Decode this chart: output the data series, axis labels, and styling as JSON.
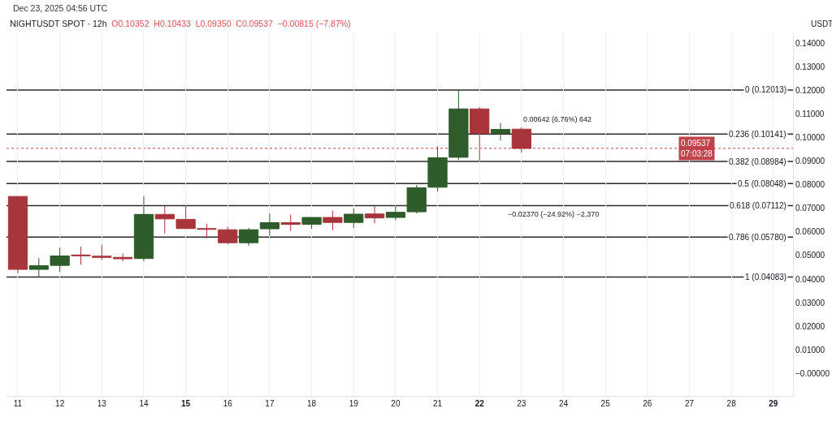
{
  "chart_data": {
    "type": "candlestick",
    "title": "NIGHTUSDT SPOT · 12h",
    "subtitle": "O0.10352  H0.10433  L0.09350  C0.09537  −0.00815 (−7.87%)",
    "ylabel": "USDT",
    "x": [
      "2025-12-11T00:00",
      "2025-12-11T12:00",
      "2025-12-12T00:00",
      "2025-12-12T12:00",
      "2025-12-13T00:00",
      "2025-12-13T12:00",
      "2025-12-14T00:00",
      "2025-12-14T12:00",
      "2025-12-15T00:00",
      "2025-12-15T12:00",
      "2025-12-16T00:00",
      "2025-12-16T12:00",
      "2025-12-17T00:00",
      "2025-12-17T12:00",
      "2025-12-18T00:00",
      "2025-12-18T12:00",
      "2025-12-19T00:00",
      "2025-12-19T12:00",
      "2025-12-20T00:00",
      "2025-12-20T12:00",
      "2025-12-21T00:00",
      "2025-12-21T12:00",
      "2025-12-22T00:00",
      "2025-12-22T12:00",
      "2025-12-23T00:00"
    ],
    "ohlc": [
      [
        0.075,
        0.0751,
        0.0424,
        0.0441
      ],
      [
        0.0441,
        0.0489,
        0.0408,
        0.0457
      ],
      [
        0.0458,
        0.0533,
        0.043,
        0.0498
      ],
      [
        0.0502,
        0.0538,
        0.0461,
        0.0499
      ],
      [
        0.0497,
        0.0546,
        0.0481,
        0.0492
      ],
      [
        0.0492,
        0.0508,
        0.0475,
        0.0486
      ],
      [
        0.0487,
        0.075,
        0.0475,
        0.0674
      ],
      [
        0.0674,
        0.071,
        0.0593,
        0.0655
      ],
      [
        0.0653,
        0.0712,
        0.0612,
        0.0614
      ],
      [
        0.0614,
        0.0635,
        0.0573,
        0.0611
      ],
      [
        0.0609,
        0.0622,
        0.0547,
        0.0554
      ],
      [
        0.0554,
        0.0617,
        0.0541,
        0.0609
      ],
      [
        0.0613,
        0.0678,
        0.0584,
        0.0639
      ],
      [
        0.0639,
        0.0674,
        0.0604,
        0.0632
      ],
      [
        0.0632,
        0.0662,
        0.0613,
        0.0661
      ],
      [
        0.0661,
        0.069,
        0.0607,
        0.064
      ],
      [
        0.064,
        0.07,
        0.0617,
        0.0675
      ],
      [
        0.0676,
        0.071,
        0.0636,
        0.0659
      ],
      [
        0.0661,
        0.071,
        0.0649,
        0.0683
      ],
      [
        0.0685,
        0.0799,
        0.0678,
        0.0787
      ],
      [
        0.0789,
        0.0962,
        0.0771,
        0.0914
      ],
      [
        0.0916,
        0.1201,
        0.0905,
        0.1121
      ],
      [
        0.1121,
        0.1129,
        0.09,
        0.1017
      ],
      [
        0.1017,
        0.1061,
        0.0987,
        0.1034
      ],
      [
        0.10352,
        0.10433,
        0.0935,
        0.09537
      ]
    ],
    "colors": [
      "#a8353c",
      "#2e5c2a",
      "#2e5c2a",
      "#a8353c",
      "#a8353c",
      "#a8353c",
      "#2e5c2a",
      "#a8353c",
      "#a8353c",
      "#a8353c",
      "#a8353c",
      "#2e5c2a",
      "#2e5c2a",
      "#a8353c",
      "#2e5c2a",
      "#a8353c",
      "#2e5c2a",
      "#a8353c",
      "#2e5c2a",
      "#2e5c2a",
      "#2e5c2a",
      "#2e5c2a",
      "#a8353c",
      "#2e5c2a",
      "#a8353c"
    ],
    "xlim": [
      "2025-12-10T17:30",
      "2025-12-29T11:15"
    ],
    "xticks": [
      {
        "value": "2025-12-11",
        "label": "11"
      },
      {
        "value": "2025-12-12",
        "label": "12"
      },
      {
        "value": "2025-12-13",
        "label": "13"
      },
      {
        "value": "2025-12-14",
        "label": "14"
      },
      {
        "value": "2025-12-15",
        "label": "15"
      },
      {
        "value": "2025-12-16",
        "label": "16"
      },
      {
        "value": "2025-12-17",
        "label": "17"
      },
      {
        "value": "2025-12-18",
        "label": "18"
      },
      {
        "value": "2025-12-19",
        "label": "19"
      },
      {
        "value": "2025-12-20",
        "label": "20"
      },
      {
        "value": "2025-12-21",
        "label": "21"
      },
      {
        "value": "2025-12-22",
        "label": "22"
      },
      {
        "value": "2025-12-23",
        "label": "23"
      },
      {
        "value": "2025-12-24",
        "label": "24"
      },
      {
        "value": "2025-12-25",
        "label": "25"
      },
      {
        "value": "2025-12-26",
        "label": "26"
      },
      {
        "value": "2025-12-27",
        "label": "27"
      },
      {
        "value": "2025-12-28",
        "label": "28"
      },
      {
        "value": "2025-12-29",
        "label": "29"
      }
    ],
    "ylim": [
      -0.0095,
      0.1445
    ],
    "yticks": [
      {
        "value": 0,
        "label": "−0.00000"
      },
      {
        "value": 0.01,
        "label": "0.01000"
      },
      {
        "value": 0.02,
        "label": "0.02000"
      },
      {
        "value": 0.03,
        "label": "0.03000"
      },
      {
        "value": 0.04,
        "label": "0.04000"
      },
      {
        "value": 0.05,
        "label": "0.05000"
      },
      {
        "value": 0.06,
        "label": "0.06000"
      },
      {
        "value": 0.07,
        "label": "0.07000"
      },
      {
        "value": 0.08,
        "label": "0.08000"
      },
      {
        "value": 0.09,
        "label": "0.09000"
      },
      {
        "value": 0.1,
        "label": "0.10000"
      },
      {
        "value": 0.11,
        "label": "0.11000"
      },
      {
        "value": 0.12,
        "label": "0.12000"
      },
      {
        "value": 0.13,
        "label": "0.13000"
      },
      {
        "value": 0.14,
        "label": "0.14000"
      }
    ],
    "grid": "x",
    "ref_lines": [
      {
        "axis": "y",
        "value": 0.12013,
        "label": "0 (0.12013)",
        "color": "#2a2a2a"
      },
      {
        "axis": "y",
        "value": 0.10141,
        "label": "0.236 (0.10141)",
        "color": "#2a2a2a"
      },
      {
        "axis": "y",
        "value": 0.08984,
        "label": "0.382 (0.08984)",
        "color": "#2a2a2a"
      },
      {
        "axis": "y",
        "value": 0.08048,
        "label": "0.5 (0.08048)",
        "color": "#2a2a2a"
      },
      {
        "axis": "y",
        "value": 0.07112,
        "label": "0.618 (0.07112)",
        "color": "#2a2a2a"
      },
      {
        "axis": "y",
        "value": 0.0578,
        "label": "0.786 (0.05780)",
        "color": "#2a2a2a"
      },
      {
        "axis": "y",
        "value": 0.04083,
        "label": "1 (0.04083)",
        "color": "#2a2a2a"
      },
      {
        "axis": "y",
        "value": 0.09537,
        "label": "0.09537\n07:03:28",
        "color": "#c0424a",
        "line_style": "dotted"
      }
    ],
    "annotations": [
      "Dec 23, 2025 04:56 UTC",
      {
        "text": "0.00642 (6.76%) 642",
        "x": "2025-12-23T00:00",
        "y": 0.10433
      },
      {
        "text": "−0.02370 (−24.92%) −2,370",
        "x": "2025-12-23T18:00",
        "y": 0.07112
      }
    ]
  }
}
